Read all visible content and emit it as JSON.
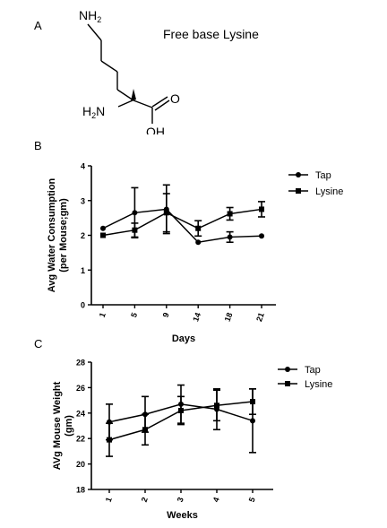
{
  "panel_a": {
    "label": "A",
    "caption": "Free base Lysine",
    "atoms": {
      "amine_top": "NH",
      "amine_top_sub": "2",
      "amine_alpha": "H",
      "amine_alpha_sub": "2",
      "amine_alpha_n": "N",
      "oxygen": "O",
      "hydroxyl": "OH"
    }
  },
  "chart_data": [
    {
      "panel_label": "B",
      "type": "line",
      "xlabel": "Days",
      "ylabel_lines": [
        "Avg Water Consumption",
        "(per Mouse;gm)"
      ],
      "categories": [
        "1",
        "5",
        "9",
        "14",
        "18",
        "21"
      ],
      "ylim": [
        0,
        4
      ],
      "yticks": [
        "0",
        "1",
        "2",
        "3",
        "4"
      ],
      "grid": false,
      "legend_position": "top-right",
      "series": [
        {
          "name": "Tap",
          "marker": "circle",
          "values": [
            2.2,
            2.65,
            2.75,
            1.8,
            1.95,
            1.98
          ],
          "errors": [
            0,
            0.72,
            0.7,
            0,
            0.15,
            0
          ]
        },
        {
          "name": "Lysine",
          "marker": "square",
          "values": [
            2.0,
            2.15,
            2.65,
            2.2,
            2.62,
            2.75
          ],
          "errors": [
            0,
            0.2,
            0.55,
            0.22,
            0.18,
            0.22
          ]
        }
      ]
    },
    {
      "panel_label": "C",
      "type": "line",
      "xlabel": "Weeks",
      "ylabel_lines": [
        "AVg Mouse Weight",
        "(gm)"
      ],
      "categories": [
        "1",
        "2",
        "3",
        "4",
        "5"
      ],
      "ylim": [
        18,
        28
      ],
      "yticks": [
        "18",
        "20",
        "22",
        "24",
        "26",
        "28"
      ],
      "grid": false,
      "legend_position": "top-right",
      "series": [
        {
          "name": "Tap",
          "marker": "circle",
          "values": [
            23.3,
            23.9,
            24.7,
            24.3,
            23.4
          ],
          "errors": [
            1.4,
            1.4,
            1.5,
            1.6,
            2.5
          ]
        },
        {
          "name": "Lysine",
          "marker": "square",
          "values": [
            21.9,
            22.7,
            24.2,
            24.6,
            24.9
          ],
          "errors": [
            1.3,
            1.2,
            1.1,
            1.2,
            1.0
          ]
        }
      ]
    }
  ]
}
